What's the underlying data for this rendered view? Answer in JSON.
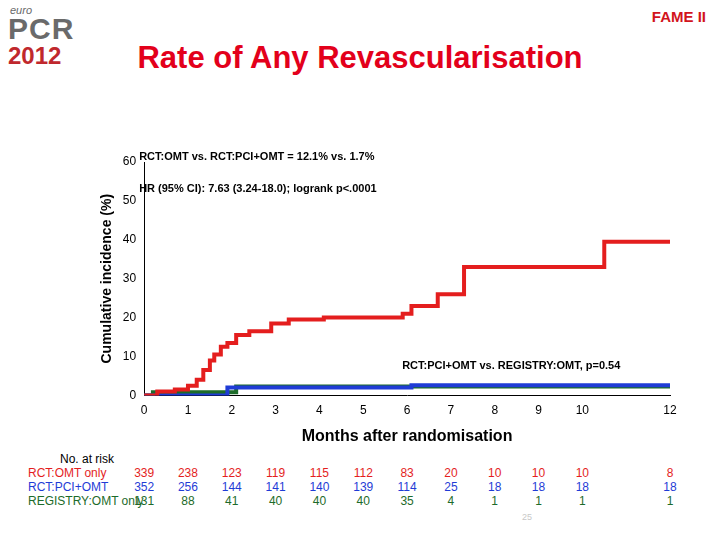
{
  "header": {
    "logo": {
      "top": "euro",
      "main": "PCR",
      "year": "2012"
    },
    "label": "FAME II"
  },
  "chart_data": {
    "type": "line",
    "title": "Rate of Any Revascularisation",
    "x_label": "Months after randomisation",
    "y_label": "Cumulative incidence (%)",
    "annotations": [
      "RCT:OMT vs. RCT:PCI+OMT = 12.1% vs. 1.7%",
      "HR (95% CI): 7.63 (3.24-18.0); logrank p<.0001",
      "RCT:PCI+OMT vs. REGISTRY:OMT, p=0.54"
    ],
    "xlim": [
      0,
      12
    ],
    "xticks": [
      0,
      1,
      2,
      3,
      4,
      5,
      6,
      7,
      8,
      9,
      10,
      12
    ],
    "ylim": [
      0,
      60
    ],
    "yticks": [
      0,
      10,
      20,
      30,
      40,
      50,
      60
    ],
    "grid": false,
    "line_style": "step",
    "at_risk_title": "No. at risk",
    "series": [
      {
        "name": "RCT:OMT only",
        "color": "#e41e1e",
        "x": [
          0,
          0.3,
          0.7,
          1.0,
          1.2,
          1.35,
          1.5,
          1.6,
          1.75,
          1.9,
          2.1,
          2.4,
          2.9,
          3.3,
          4.1,
          5.9,
          6.1,
          6.7,
          7.3,
          10.5,
          12
        ],
        "values": [
          0,
          1.0,
          1.5,
          2.5,
          4,
          6.5,
          9,
          10.5,
          12.5,
          13.5,
          15.5,
          16.5,
          18.5,
          19.5,
          20,
          21,
          23,
          26,
          33,
          39.5,
          39.5
        ],
        "at_risk": [
          339,
          238,
          123,
          119,
          115,
          112,
          83,
          20,
          10,
          10,
          10,
          8
        ]
      },
      {
        "name": "RCT:PCI+OMT",
        "color": "#1f3cd6",
        "x": [
          0,
          1.9,
          6.1,
          12
        ],
        "values": [
          0,
          2.0,
          2.6,
          2.6
        ],
        "at_risk": [
          352,
          256,
          144,
          141,
          140,
          139,
          114,
          25,
          18,
          18,
          18,
          18
        ]
      },
      {
        "name": "REGISTRY:OMT only",
        "color": "#1d6b2a",
        "x": [
          0,
          0.2,
          2.1,
          12
        ],
        "values": [
          0,
          0.8,
          2.3,
          2.3
        ],
        "at_risk": [
          131,
          88,
          41,
          40,
          40,
          40,
          35,
          4,
          1,
          1,
          1,
          1
        ]
      }
    ]
  },
  "footer": {
    "slide_number": "25"
  }
}
